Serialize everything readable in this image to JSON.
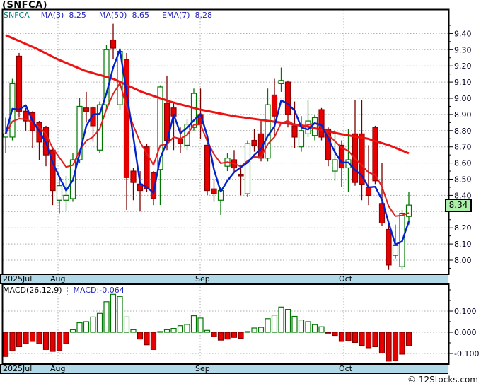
{
  "header": {
    "title": "(SNFCA)"
  },
  "legend": {
    "symbol": "SNFCA",
    "items": [
      {
        "label": "MA(3)",
        "value": "8.25"
      },
      {
        "label": "MA(50)",
        "value": "8.65"
      },
      {
        "label": "EMA(7)",
        "value": "8.28"
      }
    ]
  },
  "price_axis": {
    "current_price": "8.34",
    "tick_labels": [
      {
        "value": 9.4,
        "label": "9.40"
      },
      {
        "value": 9.3,
        "label": "9.30"
      },
      {
        "value": 9.2,
        "label": "9.20"
      },
      {
        "value": 9.1,
        "label": "9.10"
      },
      {
        "value": 9.0,
        "label": "9.00"
      },
      {
        "value": 8.9,
        "label": "8.90"
      },
      {
        "value": 8.8,
        "label": "8.80"
      },
      {
        "value": 8.7,
        "label": "8.70"
      },
      {
        "value": 8.6,
        "label": "8.60"
      },
      {
        "value": 8.5,
        "label": "8.50"
      },
      {
        "value": 8.4,
        "label": "8.40"
      },
      {
        "value": 8.2,
        "label": "8.20"
      },
      {
        "value": 8.1,
        "label": "8.10"
      },
      {
        "value": 8.0,
        "label": "8.00"
      }
    ]
  },
  "timeline": {
    "labels": [
      {
        "text": "2025Jul",
        "x": 3
      },
      {
        "text": "Aug",
        "x": 70
      },
      {
        "text": "Sep",
        "x": 275
      },
      {
        "text": "Oct",
        "x": 478
      }
    ],
    "month_x": [
      82,
      283,
      486
    ]
  },
  "macd_panel": {
    "title": "MACD(26,12,9)",
    "value_label": "MACD:-0.064",
    "tick_labels": [
      {
        "value": 0.1,
        "label": "0.100"
      },
      {
        "value": 0.0,
        "label": "0.000"
      },
      {
        "value": -0.1,
        "label": "-0.100"
      }
    ]
  },
  "footer": {
    "copyright": "© 12Stocks.com"
  },
  "colors": {
    "up": "#007700",
    "up_fill": "#ffffff",
    "down": "#e80000",
    "down_edge": "#8b0000",
    "down_wick": "#7a0000",
    "ma3": "#0022cc",
    "ema7": "#dd2222",
    "ma50": "#ee1111",
    "grid": "#aaaaaa",
    "border": "#000000",
    "timeline_bg": "#b2d9e8",
    "price_box_bg": "#aaeeaa",
    "symbol_color": "#007777",
    "legend_value_color": "#2222bb",
    "macd_value_color": "#2222cc",
    "tick_text": "#000028"
  },
  "chart_data": [
    {
      "type": "candlestick",
      "title": "(SNFCA) daily price",
      "x_axis_labels": [
        "2025Jul",
        "Aug",
        "Sep",
        "Oct"
      ],
      "ylim": [
        7.91,
        9.55
      ],
      "grid": true,
      "candles_ohlc": [
        [
          8.76,
          8.88,
          8.66,
          8.78
        ],
        [
          8.76,
          9.12,
          8.74,
          9.09
        ],
        [
          9.26,
          9.28,
          8.88,
          8.92
        ],
        [
          8.92,
          8.94,
          8.8,
          8.86
        ],
        [
          8.91,
          8.92,
          8.69,
          8.8
        ],
        [
          8.85,
          8.86,
          8.62,
          8.73
        ],
        [
          8.82,
          8.83,
          8.58,
          8.65
        ],
        [
          8.68,
          8.7,
          8.34,
          8.43
        ],
        [
          8.37,
          8.52,
          8.29,
          8.46
        ],
        [
          8.37,
          8.52,
          8.3,
          8.4
        ],
        [
          8.38,
          8.66,
          8.36,
          8.62
        ],
        [
          8.62,
          9.0,
          8.6,
          8.95
        ],
        [
          8.94,
          9.04,
          8.85,
          8.92
        ],
        [
          8.94,
          8.95,
          8.73,
          8.83
        ],
        [
          8.68,
          8.98,
          8.66,
          8.96
        ],
        [
          8.96,
          9.33,
          8.93,
          9.3
        ],
        [
          9.36,
          9.46,
          9.24,
          9.31
        ],
        [
          8.96,
          9.31,
          8.93,
          9.29
        ],
        [
          9.24,
          9.28,
          8.31,
          8.51
        ],
        [
          8.55,
          8.57,
          8.37,
          8.48
        ],
        [
          8.47,
          8.55,
          8.3,
          8.43
        ],
        [
          8.7,
          8.72,
          8.42,
          8.44
        ],
        [
          8.54,
          8.55,
          8.34,
          8.38
        ],
        [
          8.56,
          9.08,
          8.34,
          9.07
        ],
        [
          8.97,
          9.14,
          8.68,
          8.74
        ],
        [
          8.94,
          8.97,
          8.68,
          8.89
        ],
        [
          8.75,
          8.82,
          8.66,
          8.72
        ],
        [
          8.71,
          8.87,
          8.68,
          8.84
        ],
        [
          8.82,
          9.06,
          8.8,
          9.03
        ],
        [
          8.9,
          9.06,
          8.75,
          8.84
        ],
        [
          8.71,
          8.73,
          8.4,
          8.43
        ],
        [
          8.44,
          8.5,
          8.36,
          8.41
        ],
        [
          8.37,
          8.45,
          8.28,
          8.43
        ],
        [
          8.58,
          8.66,
          8.55,
          8.63
        ],
        [
          8.62,
          8.68,
          8.54,
          8.57
        ],
        [
          8.53,
          8.59,
          8.4,
          8.52
        ],
        [
          8.41,
          8.74,
          8.39,
          8.72
        ],
        [
          8.74,
          8.81,
          8.67,
          8.71
        ],
        [
          8.78,
          8.86,
          8.61,
          8.63
        ],
        [
          8.63,
          9.06,
          8.61,
          8.96
        ],
        [
          9.02,
          9.12,
          8.76,
          8.89
        ],
        [
          9.09,
          9.19,
          9.04,
          9.11
        ],
        [
          9.1,
          9.11,
          8.82,
          8.9
        ],
        [
          8.83,
          8.98,
          8.69,
          8.76
        ],
        [
          8.7,
          8.89,
          8.67,
          8.8
        ],
        [
          8.78,
          8.99,
          8.76,
          8.86
        ],
        [
          8.77,
          8.9,
          8.74,
          8.88
        ],
        [
          8.93,
          8.94,
          8.74,
          8.76
        ],
        [
          8.81,
          8.82,
          8.58,
          8.62
        ],
        [
          8.55,
          8.8,
          8.49,
          8.62
        ],
        [
          8.71,
          8.74,
          8.45,
          8.57
        ],
        [
          8.57,
          8.81,
          8.42,
          8.62
        ],
        [
          8.78,
          8.99,
          8.46,
          8.48
        ],
        [
          8.78,
          8.99,
          8.37,
          8.47
        ],
        [
          8.45,
          8.71,
          8.34,
          8.4
        ],
        [
          8.82,
          8.83,
          8.47,
          8.49
        ],
        [
          8.35,
          8.6,
          8.21,
          8.23
        ],
        [
          8.19,
          8.24,
          7.94,
          7.97
        ],
        [
          8.03,
          8.22,
          8.01,
          8.09
        ],
        [
          7.96,
          8.31,
          7.94,
          8.29
        ],
        [
          8.27,
          8.42,
          8.22,
          8.34
        ]
      ],
      "overlays": [
        {
          "name": "MA(3)",
          "type": "sma",
          "period": 3,
          "last_value": 8.25
        },
        {
          "name": "EMA(7)",
          "type": "ema",
          "period": 7,
          "last_value": 8.28
        },
        {
          "name": "MA(50)",
          "type": "points",
          "last_value": 8.65,
          "points": [
            [
              8,
              9.39
            ],
            [
              50,
              9.31
            ],
            [
              82,
              9.24
            ],
            [
              120,
              9.17
            ],
            [
              160,
              9.12
            ],
            [
              200,
              9.04
            ],
            [
              240,
              8.98
            ],
            [
              283,
              8.93
            ],
            [
              330,
              8.89
            ],
            [
              380,
              8.86
            ],
            [
              430,
              8.83
            ],
            [
              480,
              8.78
            ],
            [
              520,
              8.75
            ],
            [
              550,
              8.71
            ],
            [
              578,
              8.66
            ]
          ]
        }
      ]
    },
    {
      "type": "bar",
      "title": "MACD(26,12,9) histogram",
      "last_value": -0.064,
      "ylim": [
        -0.15,
        0.225
      ],
      "values": [
        -0.114,
        -0.087,
        -0.068,
        -0.054,
        -0.043,
        -0.054,
        -0.081,
        -0.09,
        -0.087,
        -0.054,
        0.012,
        0.045,
        0.05,
        0.072,
        0.089,
        0.144,
        0.179,
        0.169,
        0.072,
        0.012,
        -0.032,
        -0.059,
        -0.081,
        0.003,
        0.012,
        0.018,
        0.031,
        0.037,
        0.078,
        0.067,
        0.009,
        -0.021,
        -0.037,
        -0.032,
        -0.024,
        -0.029,
        0.002,
        0.02,
        0.023,
        0.064,
        0.081,
        0.119,
        0.108,
        0.075,
        0.058,
        0.05,
        0.036,
        0.026,
        -0.004,
        -0.015,
        -0.043,
        -0.04,
        -0.048,
        -0.062,
        -0.073,
        -0.068,
        -0.098,
        -0.136,
        -0.134,
        -0.103,
        -0.064
      ]
    }
  ]
}
